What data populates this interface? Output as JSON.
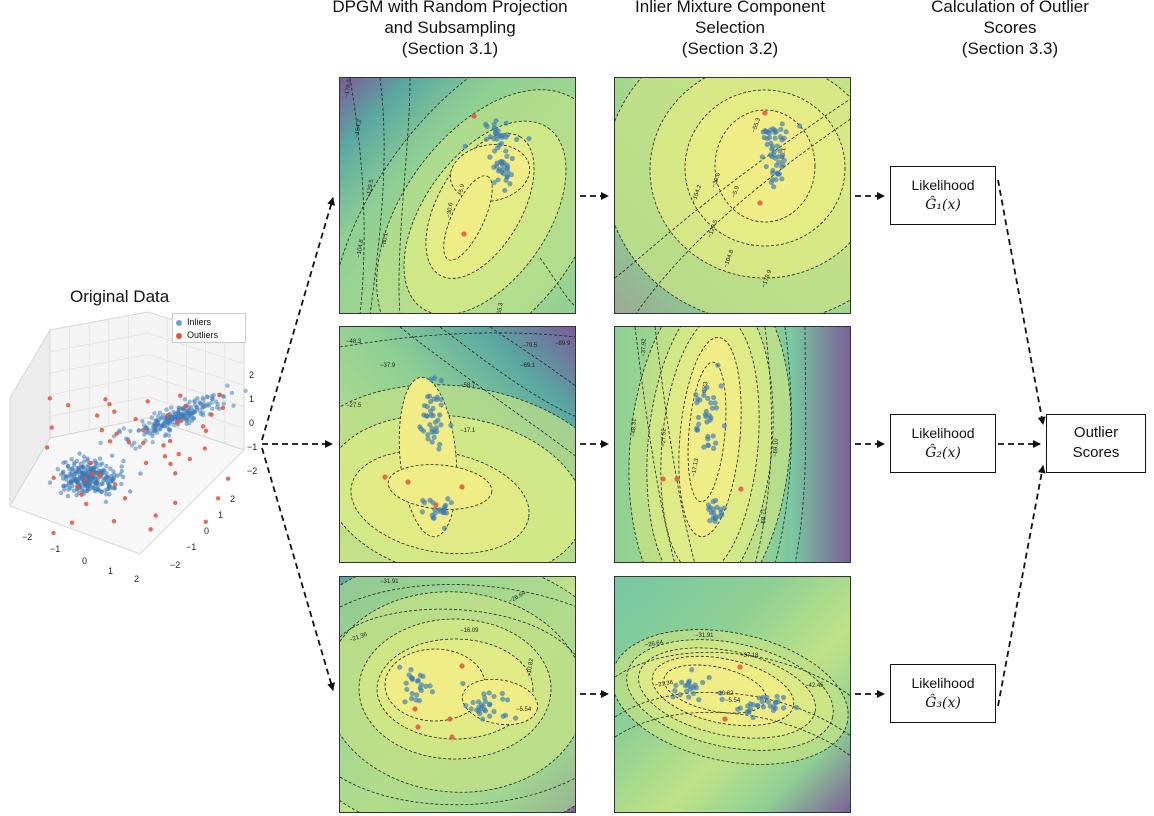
{
  "columns": {
    "dpgm": {
      "line1": "DPGM with Random Projection",
      "line2": "and Subsampling",
      "line3": "(Section 3.1)"
    },
    "selection": {
      "line1": "Inlier Mixture Component",
      "line2": "Selection",
      "line3": "(Section 3.2)"
    },
    "scores": {
      "line1": "Calculation of Outlier",
      "line2": "Scores",
      "line3": "(Section 3.3)"
    }
  },
  "original": {
    "title": "Original Data",
    "legend": {
      "inliers": "Inliers",
      "outliers": "Outliers"
    },
    "z_ticks": [
      "2",
      "1",
      "0",
      "−1",
      "−2"
    ],
    "x_ticks": [
      "−2",
      "−1",
      "0",
      "1",
      "2"
    ],
    "y_ticks": [
      "2",
      "1",
      "0",
      "−1",
      "−2"
    ]
  },
  "likelihood_boxes": [
    {
      "label": "Likelihood",
      "formula": "Ĝ₁(x)"
    },
    {
      "label": "Likelihood",
      "formula": "Ĝ₂(x)"
    },
    {
      "label": "Likelihood",
      "formula": "Ĝ₃(x)"
    }
  ],
  "output_box": {
    "line1": "Outlier",
    "line2": "Scores"
  },
  "contour_labels": {
    "p1": [
      "−178.9",
      "−154.2",
      "−129.5",
      "−104.8",
      "−80.1",
      "−55.3",
      "−30.6",
      "−5.9"
    ],
    "p2": [
      "−30.6",
      "−5.9",
      "−55.3",
      "−80.1",
      "−104.8",
      "−129.5",
      "−154.2",
      "−178.9"
    ],
    "p3": [
      "−48.3",
      "−37.9",
      "−27.5",
      "−17.1",
      "−58.7",
      "−69.1",
      "−79.5",
      "−89.9"
    ],
    "p4": [
      "−37.92",
      "−27.52",
      "−17.13",
      "−6.73",
      "−48.31",
      "−58.71",
      "−69.10"
    ],
    "p5": [
      "−31.91",
      "−26.64",
      "−21.36",
      "−16.09",
      "−10.82",
      "−5.54"
    ],
    "p6": [
      "−31.91",
      "−37.18",
      "−26.64",
      "−21.36",
      "−10.82",
      "−5.54",
      "−42.45"
    ]
  },
  "colors": {
    "inlier": "#3b79b5",
    "outlier": "#e0533f",
    "yellow": "#f0ec86",
    "green": "#8fd094",
    "teal": "#5aa7a2",
    "purple": "#7a5c9a"
  }
}
